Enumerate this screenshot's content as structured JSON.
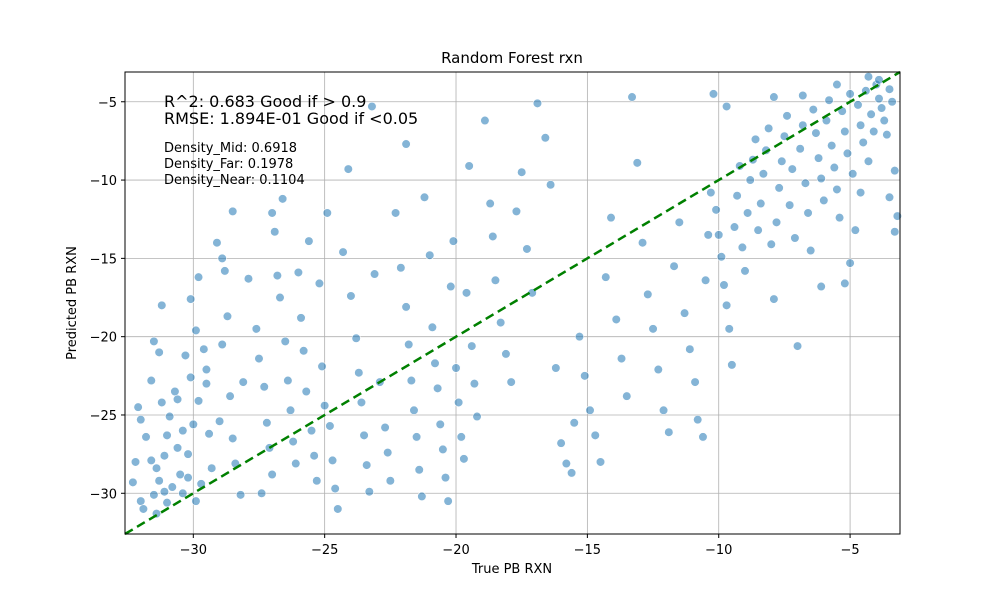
{
  "chart_data": {
    "type": "scatter",
    "title": "Random Forest rxn",
    "xlabel": "True PB RXN",
    "ylabel": "Predicted PB RXN",
    "xlim": [
      -32.6,
      -3.1
    ],
    "ylim": [
      -32.6,
      -3.1
    ],
    "xticks": [
      -30,
      -25,
      -20,
      -15,
      -10,
      -5
    ],
    "yticks": [
      -30,
      -25,
      -20,
      -15,
      -10,
      -5
    ],
    "grid": true,
    "point_color": "#1f77b4",
    "reference_line": {
      "from": [
        -32.6,
        -32.6
      ],
      "to": [
        -3.1,
        -3.1
      ],
      "color": "#008000",
      "style": "dashed"
    },
    "annotations": {
      "r2": "R^2: 0.683 Good if > 0.9",
      "rmse": "RMSE: 1.894E-01 Good if <0.05",
      "density_mid": "Density_Mid: 0.6918",
      "density_far": "Density_Far: 0.1978",
      "density_near": "Density_Near: 0.1104"
    },
    "series": [
      {
        "points": [
          [
            -31.5,
            -30.1
          ],
          [
            -31.3,
            -29.2
          ],
          [
            -31.1,
            -27.6
          ],
          [
            -31.0,
            -26.3
          ],
          [
            -30.9,
            -25.1
          ],
          [
            -31.2,
            -24.2
          ],
          [
            -31.4,
            -28.4
          ],
          [
            -30.8,
            -29.6
          ],
          [
            -31.6,
            -22.8
          ],
          [
            -31.3,
            -21.0
          ],
          [
            -31.5,
            -20.3
          ],
          [
            -31.2,
            -18.0
          ],
          [
            -30.7,
            -23.5
          ],
          [
            -30.6,
            -27.1
          ],
          [
            -31.0,
            -30.6
          ],
          [
            -31.4,
            -31.3
          ],
          [
            -31.1,
            -29.9
          ],
          [
            -31.6,
            -27.9
          ],
          [
            -31.8,
            -26.4
          ],
          [
            -32.0,
            -25.3
          ],
          [
            -32.1,
            -24.5
          ],
          [
            -32.2,
            -28.0
          ],
          [
            -32.3,
            -29.3
          ],
          [
            -32.0,
            -30.5
          ],
          [
            -31.9,
            -31.0
          ],
          [
            -30.4,
            -30.0
          ],
          [
            -30.2,
            -27.5
          ],
          [
            -30.0,
            -25.6
          ],
          [
            -29.8,
            -24.1
          ],
          [
            -30.1,
            -22.6
          ],
          [
            -30.3,
            -21.2
          ],
          [
            -29.9,
            -19.6
          ],
          [
            -30.1,
            -17.6
          ],
          [
            -29.8,
            -16.2
          ],
          [
            -29.6,
            -20.8
          ],
          [
            -29.5,
            -23.0
          ],
          [
            -29.4,
            -26.2
          ],
          [
            -29.3,
            -28.4
          ],
          [
            -29.7,
            -29.4
          ],
          [
            -30.5,
            -28.8
          ],
          [
            -30.4,
            -26.0
          ],
          [
            -30.6,
            -24.0
          ],
          [
            -30.2,
            -29.0
          ],
          [
            -29.9,
            -30.5
          ],
          [
            -29.5,
            -22.1
          ],
          [
            -29.1,
            -14.0
          ],
          [
            -28.9,
            -15.0
          ],
          [
            -28.8,
            -15.8
          ],
          [
            -28.7,
            -18.7
          ],
          [
            -28.9,
            -20.5
          ],
          [
            -28.6,
            -23.8
          ],
          [
            -28.5,
            -26.5
          ],
          [
            -28.4,
            -28.1
          ],
          [
            -29.0,
            -25.4
          ],
          [
            -28.2,
            -30.1
          ],
          [
            -28.1,
            -22.9
          ],
          [
            -28.5,
            -12.0
          ],
          [
            -27.9,
            -16.3
          ],
          [
            -27.6,
            -19.5
          ],
          [
            -27.5,
            -21.4
          ],
          [
            -27.3,
            -23.2
          ],
          [
            -27.2,
            -25.5
          ],
          [
            -27.1,
            -27.1
          ],
          [
            -27.0,
            -28.8
          ],
          [
            -27.4,
            -30.0
          ],
          [
            -26.9,
            -13.3
          ],
          [
            -26.8,
            -16.1
          ],
          [
            -26.7,
            -17.5
          ],
          [
            -26.5,
            -20.3
          ],
          [
            -26.4,
            -22.8
          ],
          [
            -26.3,
            -24.7
          ],
          [
            -26.2,
            -26.7
          ],
          [
            -26.1,
            -28.1
          ],
          [
            -26.6,
            -11.2
          ],
          [
            -27.0,
            -12.1
          ],
          [
            -26.0,
            -15.9
          ],
          [
            -25.9,
            -18.8
          ],
          [
            -25.8,
            -20.9
          ],
          [
            -25.7,
            -23.5
          ],
          [
            -25.5,
            -26.0
          ],
          [
            -25.4,
            -27.6
          ],
          [
            -25.3,
            -29.2
          ],
          [
            -25.6,
            -13.9
          ],
          [
            -25.2,
            -16.6
          ],
          [
            -25.1,
            -21.9
          ],
          [
            -25.0,
            -24.4
          ],
          [
            -24.8,
            -25.7
          ],
          [
            -24.7,
            -27.9
          ],
          [
            -24.6,
            -29.7
          ],
          [
            -24.5,
            -31.0
          ],
          [
            -24.9,
            -12.1
          ],
          [
            -24.3,
            -14.6
          ],
          [
            -24.1,
            -9.3
          ],
          [
            -24.0,
            -17.4
          ],
          [
            -23.8,
            -20.1
          ],
          [
            -23.7,
            -22.3
          ],
          [
            -23.6,
            -24.2
          ],
          [
            -23.5,
            -26.3
          ],
          [
            -23.4,
            -28.2
          ],
          [
            -23.3,
            -29.9
          ],
          [
            -23.2,
            -5.3
          ],
          [
            -23.1,
            -16.0
          ],
          [
            -22.9,
            -22.9
          ],
          [
            -22.7,
            -25.8
          ],
          [
            -22.6,
            -27.4
          ],
          [
            -22.5,
            -29.2
          ],
          [
            -22.3,
            -12.1
          ],
          [
            -22.1,
            -15.6
          ],
          [
            -21.9,
            -18.1
          ],
          [
            -21.8,
            -20.5
          ],
          [
            -21.7,
            -22.8
          ],
          [
            -21.6,
            -24.7
          ],
          [
            -21.5,
            -26.4
          ],
          [
            -21.4,
            -28.5
          ],
          [
            -21.3,
            -30.2
          ],
          [
            -21.9,
            -7.7
          ],
          [
            -21.2,
            -11.1
          ],
          [
            -21.0,
            -14.8
          ],
          [
            -20.9,
            -19.4
          ],
          [
            -20.8,
            -21.7
          ],
          [
            -20.7,
            -23.3
          ],
          [
            -20.6,
            -25.6
          ],
          [
            -20.5,
            -27.2
          ],
          [
            -20.4,
            -29.0
          ],
          [
            -20.3,
            -30.5
          ],
          [
            -20.2,
            -16.8
          ],
          [
            -20.1,
            -13.9
          ],
          [
            -20.0,
            -22.0
          ],
          [
            -19.9,
            -24.2
          ],
          [
            -19.8,
            -26.4
          ],
          [
            -19.7,
            -27.8
          ],
          [
            -19.6,
            -17.2
          ],
          [
            -19.5,
            -9.1
          ],
          [
            -19.4,
            -20.6
          ],
          [
            -19.3,
            -23.0
          ],
          [
            -19.2,
            -25.1
          ],
          [
            -18.9,
            -6.2
          ],
          [
            -18.7,
            -11.5
          ],
          [
            -18.6,
            -13.6
          ],
          [
            -18.5,
            -16.4
          ],
          [
            -18.3,
            -19.1
          ],
          [
            -18.1,
            -21.1
          ],
          [
            -17.9,
            -22.9
          ],
          [
            -17.7,
            -12.0
          ],
          [
            -17.5,
            -9.5
          ],
          [
            -17.3,
            -14.4
          ],
          [
            -17.1,
            -17.2
          ],
          [
            -16.9,
            -5.1
          ],
          [
            -16.6,
            -7.3
          ],
          [
            -16.4,
            -10.3
          ],
          [
            -16.2,
            -22.0
          ],
          [
            -16.0,
            -26.8
          ],
          [
            -15.8,
            -28.1
          ],
          [
            -15.6,
            -28.7
          ],
          [
            -15.5,
            -25.5
          ],
          [
            -15.3,
            -20.0
          ],
          [
            -15.1,
            -22.5
          ],
          [
            -14.9,
            -24.7
          ],
          [
            -14.7,
            -26.3
          ],
          [
            -14.5,
            -28.0
          ],
          [
            -14.3,
            -16.2
          ],
          [
            -14.1,
            -12.4
          ],
          [
            -13.9,
            -18.9
          ],
          [
            -13.7,
            -21.4
          ],
          [
            -13.5,
            -23.8
          ],
          [
            -13.3,
            -4.7
          ],
          [
            -13.1,
            -8.9
          ],
          [
            -12.9,
            -14.0
          ],
          [
            -12.7,
            -17.3
          ],
          [
            -12.5,
            -19.5
          ],
          [
            -12.3,
            -22.1
          ],
          [
            -12.1,
            -24.7
          ],
          [
            -11.9,
            -26.1
          ],
          [
            -11.7,
            -15.5
          ],
          [
            -11.5,
            -12.7
          ],
          [
            -11.3,
            -18.5
          ],
          [
            -11.1,
            -20.8
          ],
          [
            -10.9,
            -22.9
          ],
          [
            -10.8,
            -25.3
          ],
          [
            -10.6,
            -26.4
          ],
          [
            -10.5,
            -16.4
          ],
          [
            -10.4,
            -13.5
          ],
          [
            -10.3,
            -10.8
          ],
          [
            -10.2,
            -4.5
          ],
          [
            -10.1,
            -11.9
          ],
          [
            -10.0,
            -13.5
          ],
          [
            -9.9,
            -14.9
          ],
          [
            -9.8,
            -16.7
          ],
          [
            -9.7,
            -18.0
          ],
          [
            -9.6,
            -19.5
          ],
          [
            -9.5,
            -21.8
          ],
          [
            -9.4,
            -13.0
          ],
          [
            -9.3,
            -11.0
          ],
          [
            -9.2,
            -9.1
          ],
          [
            -9.1,
            -14.3
          ],
          [
            -9.0,
            -15.8
          ],
          [
            -8.9,
            -12.1
          ],
          [
            -8.8,
            -10.0
          ],
          [
            -8.7,
            -8.7
          ],
          [
            -8.6,
            -7.4
          ],
          [
            -8.5,
            -13.2
          ],
          [
            -8.4,
            -11.5
          ],
          [
            -8.3,
            -9.6
          ],
          [
            -8.2,
            -8.1
          ],
          [
            -8.1,
            -6.7
          ],
          [
            -8.0,
            -14.1
          ],
          [
            -7.9,
            -17.6
          ],
          [
            -7.8,
            -12.7
          ],
          [
            -7.7,
            -10.5
          ],
          [
            -7.6,
            -8.8
          ],
          [
            -7.5,
            -7.2
          ],
          [
            -7.4,
            -5.9
          ],
          [
            -7.3,
            -11.6
          ],
          [
            -7.2,
            -9.3
          ],
          [
            -7.1,
            -13.7
          ],
          [
            -7.0,
            -20.6
          ],
          [
            -6.9,
            -8.0
          ],
          [
            -6.8,
            -6.5
          ],
          [
            -6.7,
            -10.2
          ],
          [
            -6.6,
            -12.1
          ],
          [
            -6.5,
            -14.5
          ],
          [
            -6.4,
            -5.5
          ],
          [
            -6.3,
            -7.0
          ],
          [
            -6.2,
            -8.6
          ],
          [
            -6.1,
            -9.9
          ],
          [
            -6.0,
            -11.3
          ],
          [
            -5.9,
            -6.2
          ],
          [
            -5.8,
            -4.9
          ],
          [
            -5.7,
            -7.8
          ],
          [
            -5.6,
            -9.2
          ],
          [
            -5.5,
            -10.6
          ],
          [
            -5.4,
            -12.4
          ],
          [
            -5.3,
            -5.6
          ],
          [
            -5.2,
            -6.9
          ],
          [
            -5.1,
            -8.3
          ],
          [
            -5.0,
            -4.5
          ],
          [
            -4.9,
            -9.6
          ],
          [
            -4.8,
            -13.2
          ],
          [
            -4.7,
            -5.2
          ],
          [
            -4.6,
            -6.5
          ],
          [
            -4.5,
            -7.6
          ],
          [
            -4.4,
            -4.3
          ],
          [
            -4.3,
            -8.8
          ],
          [
            -4.2,
            -5.8
          ],
          [
            -4.1,
            -6.9
          ],
          [
            -4.0,
            -3.9
          ],
          [
            -3.9,
            -4.8
          ],
          [
            -3.8,
            -5.4
          ],
          [
            -3.7,
            -6.2
          ],
          [
            -3.6,
            -7.1
          ],
          [
            -3.5,
            -4.2
          ],
          [
            -3.4,
            -5.0
          ],
          [
            -3.3,
            -9.4
          ],
          [
            -3.2,
            -12.3
          ],
          [
            -3.3,
            -13.3
          ],
          [
            -3.5,
            -11.1
          ],
          [
            -4.6,
            -10.8
          ],
          [
            -5.2,
            -16.6
          ],
          [
            -5.0,
            -15.3
          ],
          [
            -6.1,
            -16.8
          ],
          [
            -4.3,
            -3.4
          ],
          [
            -3.9,
            -3.6
          ],
          [
            -5.5,
            -3.9
          ],
          [
            -6.8,
            -4.6
          ],
          [
            -7.9,
            -4.7
          ],
          [
            -9.7,
            -5.3
          ]
        ]
      }
    ]
  }
}
